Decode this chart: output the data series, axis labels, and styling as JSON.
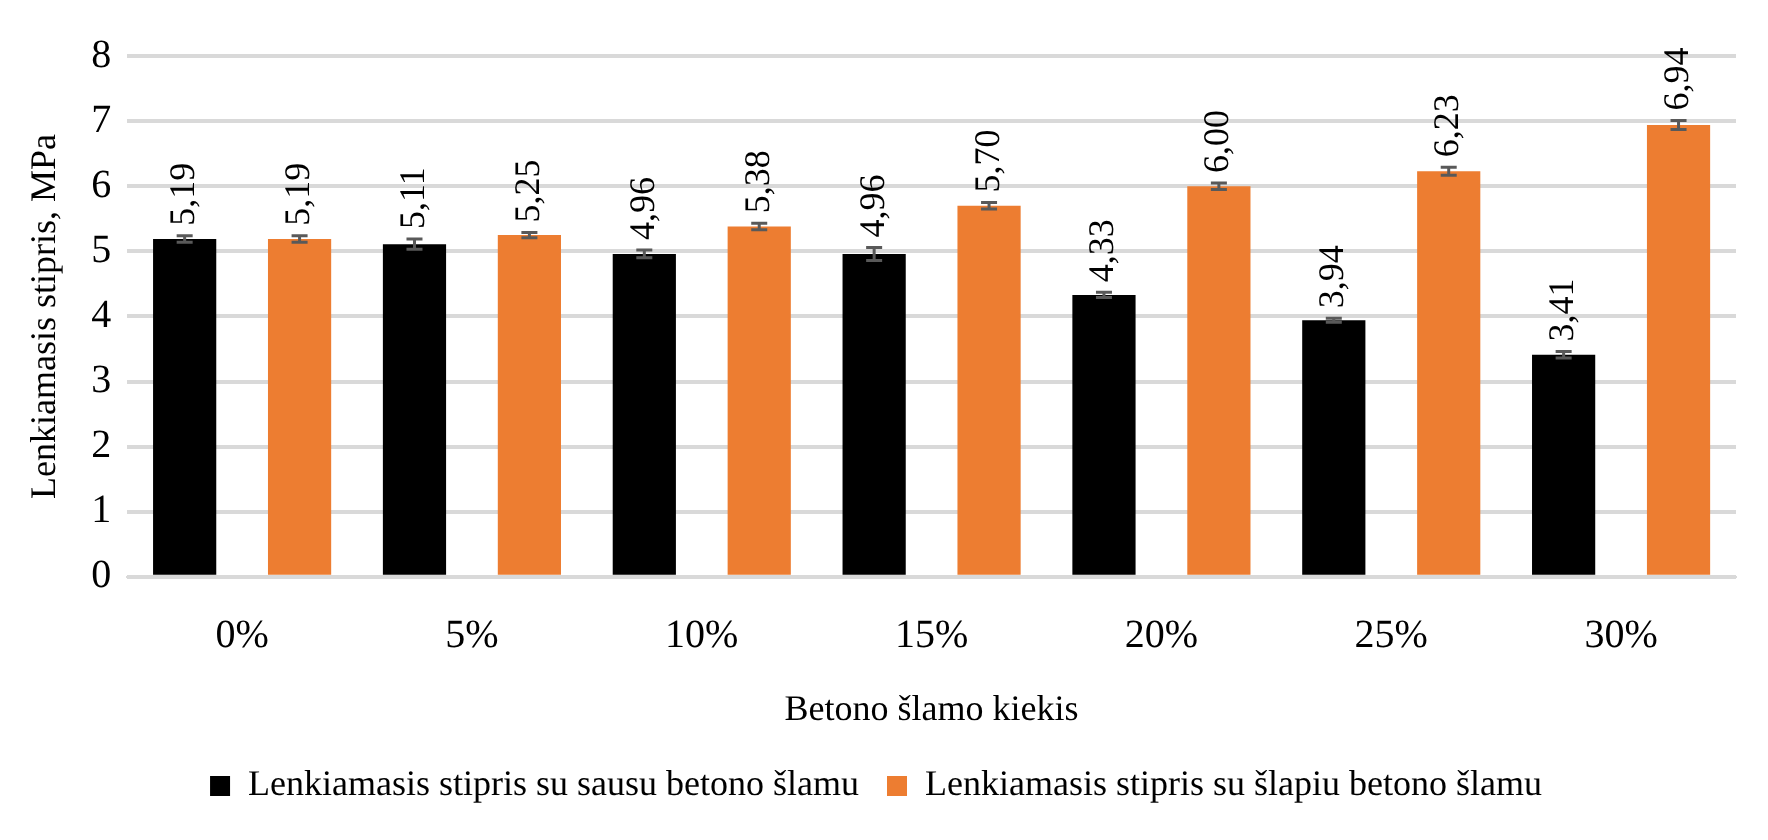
{
  "chart_data": {
    "type": "bar",
    "xlabel": "Betono šlamo kiekis",
    "ylabel": "Lenkiamasis stipris, MPa",
    "categories": [
      "0%",
      "5%",
      "10%",
      "15%",
      "20%",
      "25%",
      "30%"
    ],
    "series": [
      {
        "name": "Lenkiamasis stipris su sausu betono šlamu",
        "color": "#000000",
        "values": [
          5.19,
          5.11,
          4.96,
          4.96,
          4.33,
          3.94,
          3.41
        ],
        "errors": [
          0.05,
          0.08,
          0.06,
          0.1,
          0.04,
          0.03,
          0.05
        ],
        "value_labels": [
          "5,19",
          "5,11",
          "4,96",
          "4,96",
          "4,33",
          "3,94",
          "3,41"
        ]
      },
      {
        "name": "Lenkiamasis stipris su šlapiu betono šlamu",
        "color": "#ed7d31",
        "values": [
          5.19,
          5.25,
          5.38,
          5.7,
          6.0,
          6.23,
          6.94
        ],
        "errors": [
          0.05,
          0.04,
          0.05,
          0.05,
          0.05,
          0.06,
          0.07
        ],
        "value_labels": [
          "5,19",
          "5,25",
          "5,38",
          "5,70",
          "6,00",
          "6,23",
          "6,94"
        ]
      }
    ],
    "ylim": [
      0,
      8
    ],
    "yticks": [
      0,
      1,
      2,
      3,
      4,
      5,
      6,
      7,
      8
    ],
    "grid": "y",
    "legend": "bottom"
  }
}
